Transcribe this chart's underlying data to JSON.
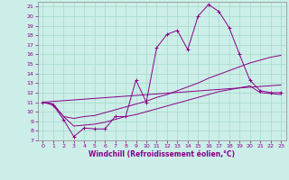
{
  "xlabel": "Windchill (Refroidissement éolien,°C)",
  "bg_color": "#cceee8",
  "grid_color": "#aaddcc",
  "line_color": "#880088",
  "xlim": [
    -0.5,
    23.5
  ],
  "ylim": [
    7,
    21.5
  ],
  "xticks": [
    0,
    1,
    2,
    3,
    4,
    5,
    6,
    7,
    8,
    9,
    10,
    11,
    12,
    13,
    14,
    15,
    16,
    17,
    18,
    19,
    20,
    21,
    22,
    23
  ],
  "yticks": [
    7,
    8,
    9,
    10,
    11,
    12,
    13,
    14,
    15,
    16,
    17,
    18,
    19,
    20,
    21
  ],
  "line1_x": [
    0,
    1,
    2,
    3,
    4,
    5,
    6,
    7,
    8,
    9,
    10,
    11,
    12,
    13,
    14,
    15,
    16,
    17,
    18,
    19,
    20,
    21,
    22,
    23
  ],
  "line1_y": [
    11.0,
    10.7,
    9.2,
    7.4,
    8.3,
    8.2,
    8.2,
    9.5,
    9.5,
    13.3,
    11.0,
    16.7,
    18.1,
    18.5,
    16.5,
    20.0,
    21.2,
    20.5,
    18.8,
    16.0,
    13.3,
    12.2,
    12.0,
    12.0
  ],
  "line2_x": [
    0,
    1,
    2,
    3,
    4,
    5,
    6,
    7,
    8,
    9,
    10,
    11,
    12,
    13,
    14,
    15,
    16,
    17,
    18,
    19,
    20,
    21,
    22,
    23
  ],
  "line2_y": [
    11.0,
    10.8,
    9.5,
    9.3,
    9.5,
    9.6,
    9.9,
    10.2,
    10.5,
    10.8,
    11.1,
    11.5,
    11.8,
    12.2,
    12.6,
    13.0,
    13.5,
    13.9,
    14.3,
    14.7,
    15.1,
    15.4,
    15.7,
    15.9
  ],
  "line3_x": [
    0,
    1,
    2,
    3,
    4,
    5,
    6,
    7,
    8,
    9,
    10,
    11,
    12,
    13,
    14,
    15,
    16,
    17,
    18,
    19,
    20,
    21,
    22,
    23
  ],
  "line3_y": [
    11.0,
    10.8,
    9.5,
    8.5,
    8.6,
    8.7,
    8.9,
    9.2,
    9.5,
    9.7,
    10.0,
    10.3,
    10.6,
    10.9,
    11.2,
    11.5,
    11.8,
    12.1,
    12.3,
    12.5,
    12.7,
    12.0,
    11.9,
    11.8
  ],
  "line4_x": [
    0,
    23
  ],
  "line4_y": [
    11.0,
    12.8
  ]
}
